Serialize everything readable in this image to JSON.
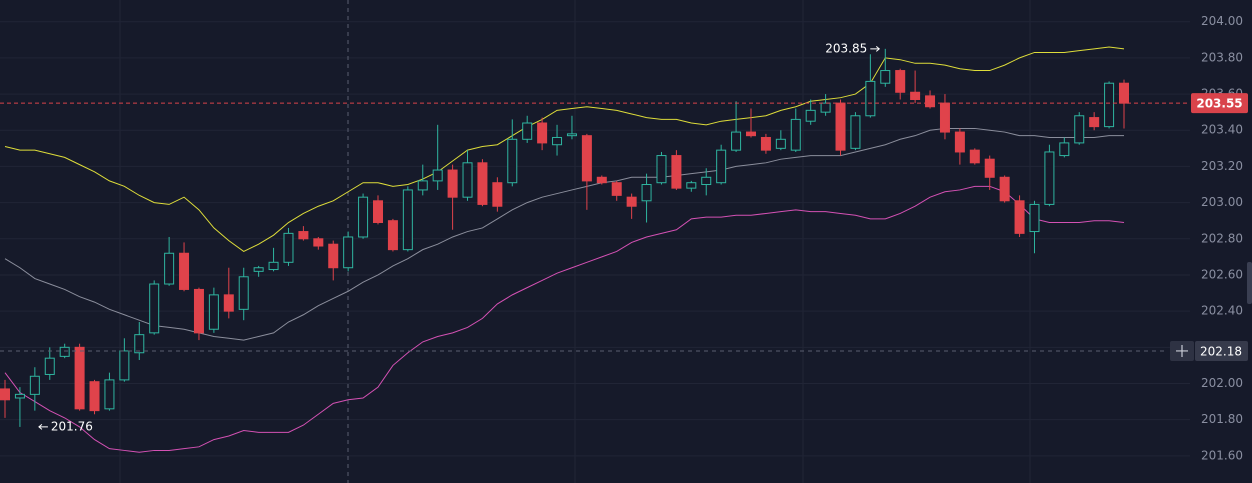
{
  "chart_data": {
    "type": "candlestick",
    "open": [
      201.97,
      201.92,
      201.94,
      202.05,
      202.15,
      202.2,
      202.01,
      201.86,
      202.02,
      202.17,
      202.28,
      202.55,
      202.72,
      202.52,
      202.3,
      202.49,
      202.41,
      202.62,
      202.63,
      202.67,
      202.84,
      202.8,
      202.77,
      202.64,
      202.81,
      203.01,
      202.9,
      202.74,
      203.07,
      203.12,
      203.18,
      203.03,
      203.22,
      203.11,
      203.11,
      203.35,
      203.44,
      203.32,
      203.37,
      203.37,
      203.14,
      203.11,
      203.03,
      203.01,
      203.11,
      203.26,
      203.08,
      203.1,
      203.11,
      203.29,
      203.39,
      203.36,
      203.3,
      203.29,
      203.45,
      203.5,
      203.55,
      203.3,
      203.48,
      203.66,
      203.73,
      203.61,
      203.59,
      203.55,
      203.39,
      203.29,
      203.24,
      203.14,
      203.01,
      202.84,
      202.99,
      203.26,
      203.33,
      203.47,
      203.42,
      203.66
    ],
    "high": [
      202.02,
      201.98,
      202.09,
      202.2,
      202.22,
      202.22,
      202.02,
      202.06,
      202.25,
      202.34,
      202.57,
      202.81,
      202.78,
      202.53,
      202.53,
      202.64,
      202.64,
      202.65,
      202.75,
      202.86,
      202.87,
      202.81,
      202.79,
      202.84,
      203.05,
      203.04,
      202.91,
      203.09,
      203.21,
      203.43,
      203.21,
      203.29,
      203.24,
      203.14,
      203.46,
      203.48,
      203.47,
      203.43,
      203.48,
      203.38,
      203.15,
      203.12,
      203.05,
      203.16,
      203.28,
      203.29,
      203.12,
      203.19,
      203.32,
      203.56,
      203.52,
      203.38,
      203.4,
      203.52,
      203.57,
      203.6,
      203.57,
      203.5,
      203.82,
      203.85,
      203.74,
      203.73,
      203.62,
      203.6,
      203.41,
      203.3,
      203.26,
      203.15,
      203.04,
      203.01,
      203.32,
      203.36,
      203.5,
      203.5,
      203.67,
      203.68
    ],
    "low": [
      201.81,
      201.76,
      201.85,
      202.02,
      202.14,
      201.85,
      201.83,
      201.85,
      202.01,
      202.13,
      202.27,
      202.54,
      202.51,
      202.24,
      202.28,
      202.36,
      202.35,
      202.59,
      202.62,
      202.65,
      202.79,
      202.74,
      202.57,
      202.62,
      202.8,
      202.88,
      202.73,
      202.73,
      203.04,
      203.07,
      202.85,
      203.01,
      202.98,
      202.95,
      203.09,
      203.33,
      203.29,
      203.26,
      203.35,
      202.96,
      203.1,
      203.01,
      202.91,
      202.89,
      203.1,
      203.07,
      203.06,
      203.04,
      203.1,
      203.28,
      203.36,
      203.27,
      203.29,
      203.28,
      203.43,
      203.48,
      203.26,
      203.29,
      203.47,
      203.64,
      203.57,
      203.55,
      203.52,
      203.35,
      203.21,
      203.21,
      203.07,
      203.0,
      202.81,
      202.72,
      202.98,
      203.25,
      203.32,
      203.4,
      203.41,
      203.41
    ],
    "close": [
      201.91,
      201.94,
      202.04,
      202.14,
      202.2,
      201.86,
      201.85,
      202.02,
      202.18,
      202.27,
      202.55,
      202.72,
      202.52,
      202.28,
      202.49,
      202.4,
      202.59,
      202.64,
      202.67,
      202.83,
      202.8,
      202.76,
      202.64,
      202.81,
      203.03,
      202.89,
      202.74,
      203.07,
      203.12,
      203.18,
      203.03,
      203.22,
      202.99,
      202.98,
      203.35,
      203.44,
      203.33,
      203.36,
      203.38,
      203.12,
      203.11,
      203.04,
      202.98,
      203.1,
      203.26,
      203.08,
      203.11,
      203.14,
      203.29,
      203.39,
      203.37,
      203.29,
      203.35,
      203.46,
      203.51,
      203.55,
      203.29,
      203.48,
      203.67,
      203.73,
      203.61,
      203.57,
      203.53,
      203.39,
      203.28,
      203.22,
      203.14,
      203.01,
      202.83,
      202.99,
      203.28,
      203.33,
      203.48,
      203.42,
      203.66,
      203.55
    ],
    "up_color": "#2fb5a0",
    "down_color": "#e0434b",
    "overlays": [
      {
        "color": "#dedd3a",
        "values": [
          203.31,
          203.29,
          203.29,
          203.27,
          203.25,
          203.21,
          203.17,
          203.12,
          203.09,
          203.04,
          203.0,
          202.99,
          203.03,
          202.96,
          202.86,
          202.79,
          202.73,
          202.77,
          202.82,
          202.89,
          202.94,
          202.98,
          203.01,
          203.06,
          203.11,
          203.11,
          203.09,
          203.1,
          203.13,
          203.17,
          203.23,
          203.29,
          203.31,
          203.32,
          203.37,
          203.42,
          203.46,
          203.51,
          203.52,
          203.53,
          203.52,
          203.51,
          203.49,
          203.47,
          203.46,
          203.46,
          203.44,
          203.43,
          203.45,
          203.46,
          203.47,
          203.48,
          203.51,
          203.53,
          203.56,
          203.57,
          203.58,
          203.6,
          203.66,
          203.8,
          203.79,
          203.77,
          203.77,
          203.76,
          203.74,
          203.73,
          203.73,
          203.76,
          203.8,
          203.83,
          203.83,
          203.83,
          203.84,
          203.85,
          203.86,
          203.85
        ]
      },
      {
        "color": "#8b8e9c",
        "values": [
          202.69,
          202.64,
          202.58,
          202.55,
          202.52,
          202.48,
          202.45,
          202.41,
          202.38,
          202.35,
          202.32,
          202.31,
          202.3,
          202.28,
          202.26,
          202.25,
          202.24,
          202.26,
          202.28,
          202.34,
          202.38,
          202.43,
          202.47,
          202.51,
          202.56,
          202.6,
          202.65,
          202.69,
          202.74,
          202.77,
          202.81,
          202.84,
          202.86,
          202.91,
          202.96,
          203.0,
          203.03,
          203.05,
          203.07,
          203.09,
          203.11,
          203.12,
          203.14,
          203.14,
          203.14,
          203.15,
          203.16,
          203.17,
          203.18,
          203.2,
          203.21,
          203.22,
          203.24,
          203.25,
          203.26,
          203.26,
          203.26,
          203.28,
          203.3,
          203.32,
          203.35,
          203.37,
          203.4,
          203.41,
          203.41,
          203.41,
          203.4,
          203.39,
          203.37,
          203.37,
          203.36,
          203.36,
          203.36,
          203.36,
          203.37,
          203.37
        ]
      },
      {
        "color": "#d451b4",
        "values": [
          202.06,
          201.95,
          201.9,
          201.85,
          201.81,
          201.76,
          201.69,
          201.64,
          201.63,
          201.62,
          201.63,
          201.63,
          201.64,
          201.65,
          201.69,
          201.71,
          201.74,
          201.73,
          201.73,
          201.73,
          201.77,
          201.83,
          201.89,
          201.91,
          201.92,
          201.98,
          202.1,
          202.17,
          202.23,
          202.26,
          202.28,
          202.31,
          202.36,
          202.44,
          202.49,
          202.53,
          202.57,
          202.61,
          202.64,
          202.67,
          202.7,
          202.73,
          202.78,
          202.81,
          202.83,
          202.85,
          202.91,
          202.92,
          202.92,
          202.93,
          202.93,
          202.94,
          202.95,
          202.96,
          202.95,
          202.95,
          202.94,
          202.93,
          202.91,
          202.91,
          202.94,
          202.98,
          203.03,
          203.06,
          203.07,
          203.09,
          203.09,
          203.06,
          202.99,
          202.91,
          202.89,
          202.89,
          202.89,
          202.9,
          202.9,
          202.89
        ]
      }
    ],
    "ylim": [
      201.45,
      204.12
    ],
    "yticks": [
      {
        "value": 201.6,
        "label": "201.60"
      },
      {
        "value": 201.8,
        "label": "201.80"
      },
      {
        "value": 202.0,
        "label": "202.00"
      },
      {
        "value": 202.2,
        "label": "202.20"
      },
      {
        "value": 202.4,
        "label": "202.40"
      },
      {
        "value": 202.6,
        "label": "202.60"
      },
      {
        "value": 202.8,
        "label": "202.80"
      },
      {
        "value": 203.0,
        "label": "203.00"
      },
      {
        "value": 203.2,
        "label": "203.20"
      },
      {
        "value": 203.4,
        "label": "203.40"
      },
      {
        "value": 203.6,
        "label": "203.60"
      },
      {
        "value": 203.8,
        "label": "203.80"
      },
      {
        "value": 204.0,
        "label": "204.00"
      }
    ],
    "grid": true,
    "last_price": 203.55,
    "last_price_color": "#d9434b",
    "crosshair_price": 202.18,
    "high_marker": 203.85,
    "low_marker": 201.76
  }
}
